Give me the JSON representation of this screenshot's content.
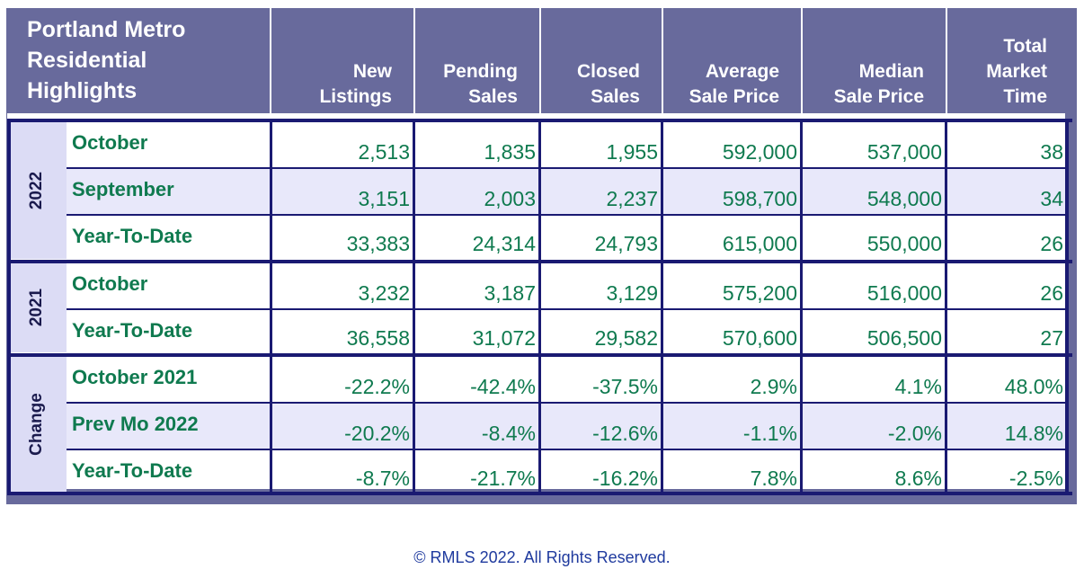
{
  "header": {
    "title_line1": "Portland Metro",
    "title_line2": "Residential",
    "title_line3": "Highlights",
    "columns": [
      {
        "line1": "New",
        "line2": "Listings"
      },
      {
        "line1": "Pending",
        "line2": "Sales"
      },
      {
        "line1": "Closed",
        "line2": "Sales"
      },
      {
        "line1": "Average",
        "line2": "Sale Price"
      },
      {
        "line1": "Median",
        "line2": "Sale Price"
      },
      {
        "line1": "Total",
        "line2": "Market",
        "line3": "Time"
      }
    ]
  },
  "groups": [
    {
      "label": "2022",
      "rows": [
        {
          "label": "October",
          "values": [
            "2,513",
            "1,835",
            "1,955",
            "592,000",
            "537,000",
            "38"
          ]
        },
        {
          "label": "September",
          "values": [
            "3,151",
            "2,003",
            "2,237",
            "598,700",
            "548,000",
            "34"
          ]
        },
        {
          "label": "Year-To-Date",
          "values": [
            "33,383",
            "24,314",
            "24,793",
            "615,000",
            "550,000",
            "26"
          ]
        }
      ]
    },
    {
      "label": "2021",
      "rows": [
        {
          "label": "October",
          "values": [
            "3,232",
            "3,187",
            "3,129",
            "575,200",
            "516,000",
            "26"
          ]
        },
        {
          "label": "Year-To-Date",
          "values": [
            "36,558",
            "31,072",
            "29,582",
            "570,600",
            "506,500",
            "27"
          ]
        }
      ]
    },
    {
      "label": "Change",
      "rows": [
        {
          "label": "October 2021",
          "values": [
            "-22.2%",
            "-42.4%",
            "-37.5%",
            "2.9%",
            "4.1%",
            "48.0%"
          ]
        },
        {
          "label": "Prev Mo 2022",
          "values": [
            "-20.2%",
            "-8.4%",
            "-12.6%",
            "-1.1%",
            "-2.0%",
            "14.8%"
          ]
        },
        {
          "label": "Year-To-Date",
          "values": [
            "-8.7%",
            "-21.7%",
            "-16.2%",
            "7.8%",
            "8.6%",
            "-2.5%"
          ]
        }
      ]
    }
  ],
  "footer": "© RMLS 2022. All Rights Reserved.",
  "colors": {
    "header_bg": "#686a9c",
    "value_text": "#0f7a4f",
    "grid": "#1a1a72",
    "alt_row": "#e8e8fa",
    "side_bg": "#dcdcf5"
  }
}
